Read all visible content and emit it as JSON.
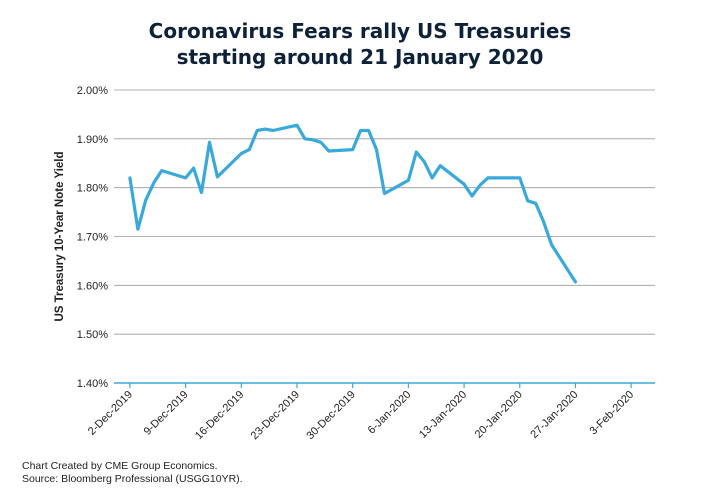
{
  "title": {
    "line1": "Coronavirus Fears rally US Treasuries",
    "line2": "starting around 21 January 2020"
  },
  "footer": {
    "line1": "Chart Created by CME Group Economics.",
    "line2": "Source:  Bloomberg Professional (USGG10YR)."
  },
  "colors": {
    "line": "#39a9dc",
    "grid": "#9a9a9a",
    "axis": "#39a9dc",
    "title": "#0d2238"
  },
  "chart_data": {
    "type": "line",
    "title": "Coronavirus Fears rally US Treasuries starting around 21 January 2020",
    "xlabel": "",
    "ylabel": "US Treasury 10-Year Note Yield",
    "ylim": [
      1.4,
      2.0
    ],
    "y_ticks": [
      2.0,
      1.9,
      1.8,
      1.7,
      1.6,
      1.5,
      1.4
    ],
    "y_tick_labels": [
      "2.00%",
      "1.90%",
      "1.80%",
      "1.70%",
      "1.60%",
      "1.50%",
      "1.40%"
    ],
    "xlim": [
      "2019-11-30",
      "2020-02-06"
    ],
    "x_ticks": [
      "2019-12-02",
      "2019-12-09",
      "2019-12-16",
      "2019-12-23",
      "2019-12-30",
      "2020-01-06",
      "2020-01-13",
      "2020-01-20",
      "2020-01-27",
      "2020-02-03"
    ],
    "x_tick_labels": [
      "2-Dec-2019",
      "9-Dec-2019",
      "16-Dec-2019",
      "23-Dec-2019",
      "30-Dec-2019",
      "6-Jan-2020",
      "13-Jan-2020",
      "20-Jan-2020",
      "27-Jan-2020",
      "3-Feb-2020"
    ],
    "grid": true,
    "legend": "none",
    "series": [
      {
        "x": [
          "2019-12-02",
          "2019-12-03",
          "2019-12-04",
          "2019-12-05",
          "2019-12-06",
          "2019-12-09",
          "2019-12-10",
          "2019-12-11",
          "2019-12-12",
          "2019-12-13",
          "2019-12-16",
          "2019-12-17",
          "2019-12-18",
          "2019-12-19",
          "2019-12-20",
          "2019-12-23",
          "2019-12-24",
          "2019-12-25",
          "2019-12-26",
          "2019-12-27",
          "2019-12-30",
          "2019-12-31",
          "2020-01-01",
          "2020-01-02",
          "2020-01-03",
          "2020-01-06",
          "2020-01-07",
          "2020-01-08",
          "2020-01-09",
          "2020-01-10",
          "2020-01-13",
          "2020-01-14",
          "2020-01-15",
          "2020-01-16",
          "2020-01-17",
          "2020-01-20",
          "2020-01-21",
          "2020-01-22",
          "2020-01-23",
          "2020-01-24",
          "2020-01-27"
        ],
        "y": [
          1.82,
          1.715,
          1.775,
          1.81,
          1.835,
          1.82,
          1.84,
          1.79,
          1.893,
          1.822,
          1.87,
          1.878,
          1.917,
          1.92,
          1.917,
          1.928,
          1.9,
          1.898,
          1.893,
          1.875,
          1.878,
          1.917,
          1.917,
          1.878,
          1.788,
          1.815,
          1.873,
          1.853,
          1.82,
          1.845,
          1.807,
          1.783,
          1.805,
          1.82,
          1.82,
          1.82,
          1.773,
          1.768,
          1.73,
          1.683,
          1.607
        ]
      }
    ]
  }
}
